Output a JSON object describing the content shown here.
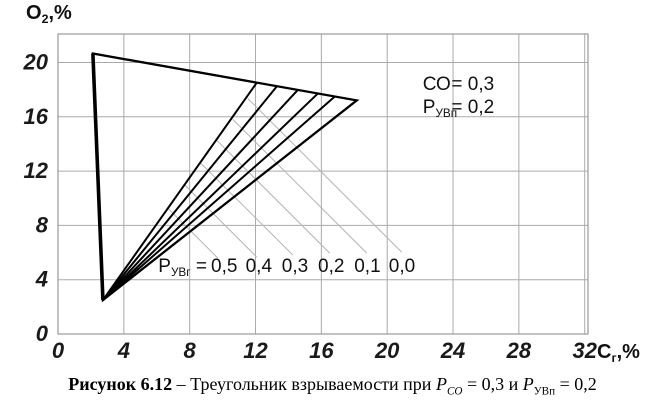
{
  "figure": {
    "caption_segments": [
      {
        "text": "Рисунок 6.12",
        "bold": true
      },
      {
        "text": " – Треугольник взрываемости при "
      },
      {
        "text": "P",
        "italic": true
      },
      {
        "text": "СО",
        "sub": true,
        "italic": true
      },
      {
        "text": " = 0,3 и "
      },
      {
        "text": "Р",
        "italic": true
      },
      {
        "text": "УВп",
        "sub": true
      },
      {
        "text": " = 0,2"
      }
    ]
  },
  "chart_data": {
    "type": "line",
    "title": "Треугольник взрываемости при Pco = 0,3 и Рувп = 0,2",
    "xlabel": {
      "main": "С",
      "sub": "г",
      "rest": ",%"
    },
    "ylabel": {
      "main": "О",
      "sub": "2",
      "rest": ",%"
    },
    "xlim": [
      0,
      32.2
    ],
    "ylim": [
      0,
      22.1
    ],
    "xticks": [
      0,
      4,
      8,
      12,
      16,
      20,
      24,
      28,
      32
    ],
    "yticks": [
      0,
      4,
      8,
      12,
      16,
      20
    ],
    "grid": true,
    "annotation": {
      "name_x": 22.16,
      "value_x": 23.9,
      "lines": [
        {
          "name": "СО",
          "sub": "",
          "value": "= 0,3",
          "y": 18.5
        },
        {
          "name": "Р",
          "sub": "УВп",
          "value": "= 0,2",
          "y": 16.8
        }
      ]
    },
    "explosive_triangle": {
      "apex": [
        2.12,
        20.66
      ],
      "bottom_vertex": [
        2.73,
        2.5
      ],
      "nose": [
        18.15,
        17.21
      ]
    },
    "fan_series": [
      {
        "label": "0,5",
        "value": 0.5,
        "nose": [
          12.08,
          18.52
        ]
      },
      {
        "label": "0,4",
        "value": 0.4,
        "nose": [
          13.3,
          18.25
        ]
      },
      {
        "label": "0,3",
        "value": 0.3,
        "nose": [
          14.57,
          17.98
        ]
      },
      {
        "label": "0,2",
        "value": 0.2,
        "nose": [
          15.79,
          17.72
        ]
      },
      {
        "label": "0,1",
        "value": 0.1,
        "nose": [
          16.82,
          17.5
        ]
      },
      {
        "label": "0,0",
        "value": 0.0,
        "nose": [
          18.15,
          17.21
        ]
      }
    ],
    "leader_lines": [
      [
        6.68,
        9.26,
        9.71,
        5.59
      ],
      [
        7.71,
        10.96,
        12.08,
        5.66
      ],
      [
        8.68,
        12.57,
        14.27,
        5.81
      ],
      [
        9.65,
        14.26,
        16.51,
        5.96
      ],
      [
        10.62,
        15.81,
        18.76,
        5.96
      ],
      [
        11.53,
        17.35,
        20.88,
        6.03
      ]
    ],
    "fan_labels": {
      "prefix": {
        "main": "Р",
        "sub": "УВг",
        "eq": " ="
      },
      "prefix_x": 9.05,
      "y": 5.07,
      "values": [
        {
          "text": "0,5",
          "x": 10.1
        },
        {
          "text": "0,4",
          "x": 12.2
        },
        {
          "text": "0,3",
          "x": 14.4
        },
        {
          "text": "0,2",
          "x": 16.6
        },
        {
          "text": "0,1",
          "x": 18.8
        },
        {
          "text": "0,0",
          "x": 20.9
        }
      ]
    },
    "colors": {
      "line": "#000000",
      "grid": "#aaaaaa",
      "frame": "#999999",
      "leader": "#b4b4b4",
      "text": "#1a1a1a"
    }
  }
}
